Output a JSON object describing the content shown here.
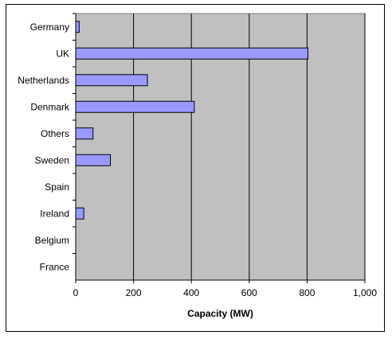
{
  "chart_data": {
    "type": "bar",
    "orientation": "horizontal",
    "categories": [
      "Germany",
      "UK",
      "Netherlands",
      "Denmark",
      "Others",
      "Sweden",
      "Spain",
      "Ireland",
      "Belgium",
      "France"
    ],
    "values": [
      12,
      803,
      248,
      410,
      60,
      120,
      0,
      28,
      0,
      0
    ],
    "xlabel": "Capacity (MW)",
    "ylabel": "",
    "title": "",
    "xlim": [
      0,
      1000
    ],
    "xticks": [
      "0",
      "200",
      "400",
      "600",
      "800",
      "1,000"
    ],
    "grid": "vertical gridlines",
    "colors": {
      "bar_fill": "#9999ff",
      "bar_stroke": "#000000",
      "plot_bg": "#c0c0c0",
      "gridline": "#000000"
    }
  }
}
